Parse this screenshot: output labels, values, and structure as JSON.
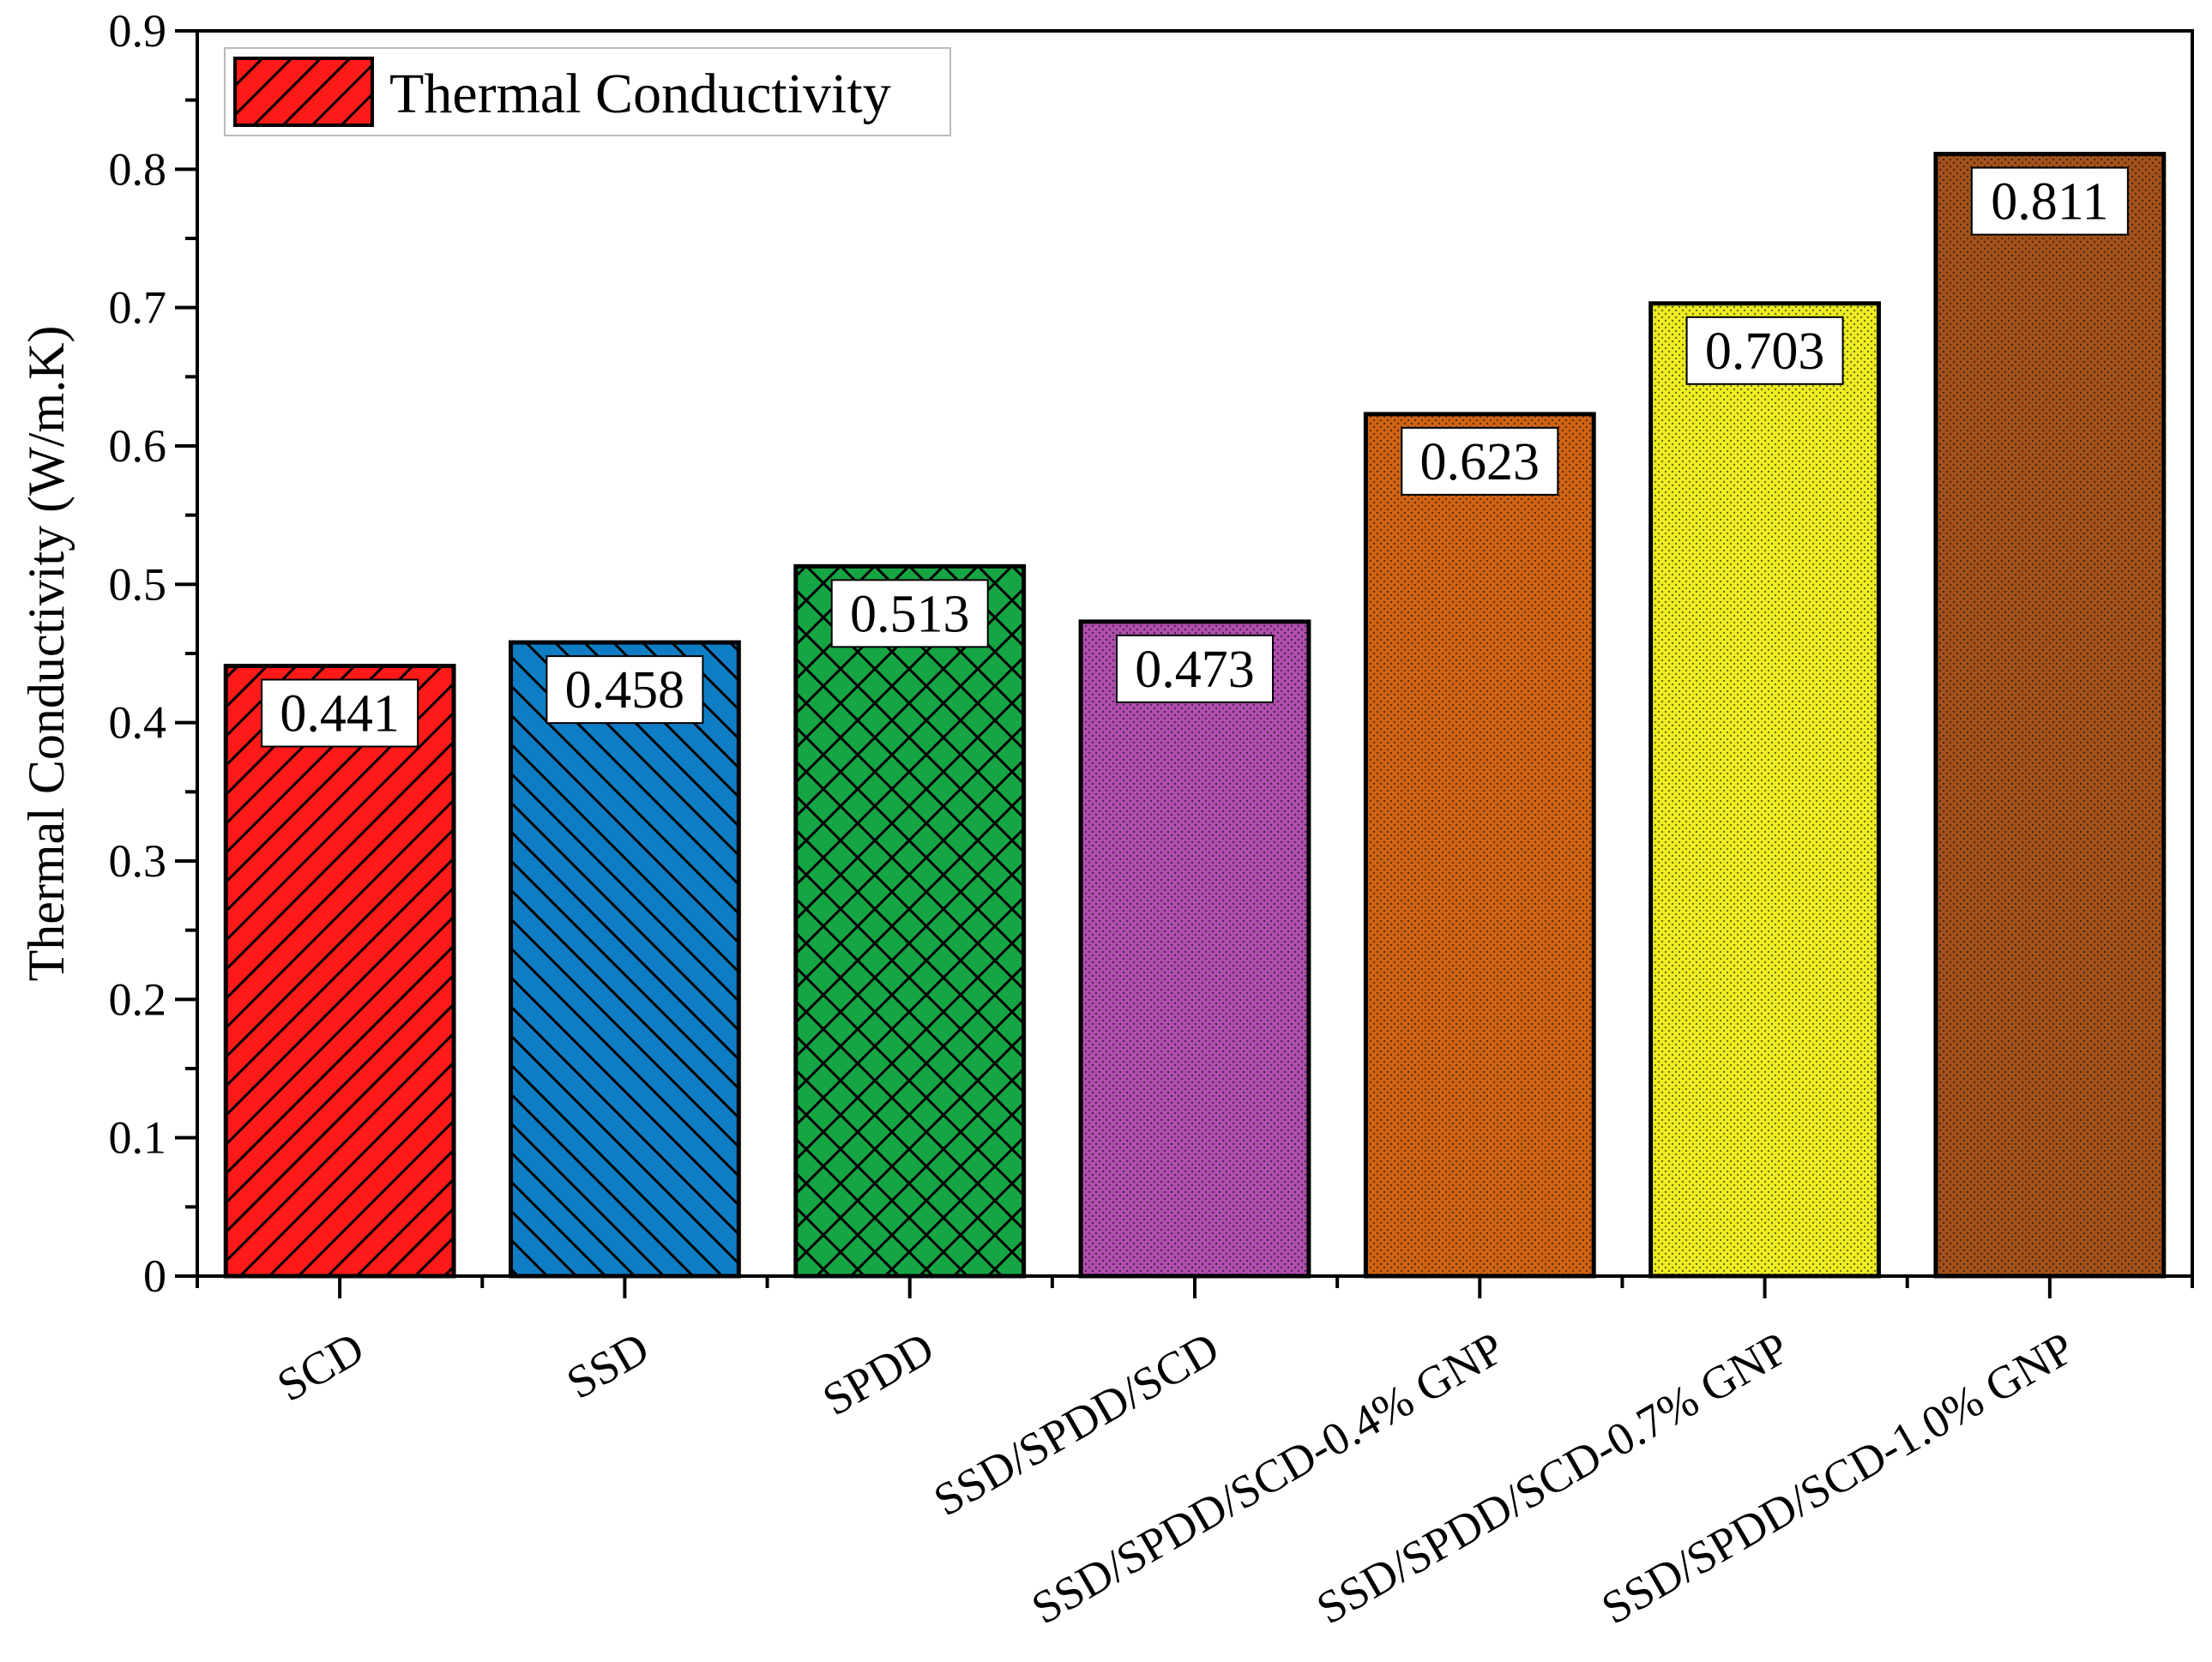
{
  "chart_data": {
    "type": "bar",
    "title": "",
    "xlabel": "",
    "ylabel": "Thermal Conductivity (W/m.K)",
    "ylim": [
      0,
      0.9
    ],
    "yticks": [
      "0",
      "0.1",
      "0.2",
      "0.3",
      "0.4",
      "0.5",
      "0.6",
      "0.7",
      "0.8",
      "0.9"
    ],
    "legend": {
      "label": "Thermal Conductivity",
      "position": "top-left"
    },
    "categories": [
      "SCD",
      "SSD",
      "SPDD",
      "SSD/SPDD/SCD",
      "SSD/SPDD/SCD-0.4% GNP",
      "SSD/SPDD/SCD-0.7% GNP",
      "SSD/SPDD/SCD-1.0% GNP"
    ],
    "values": [
      0.441,
      0.458,
      0.513,
      0.473,
      0.623,
      0.703,
      0.811
    ],
    "value_labels": [
      "0.441",
      "0.458",
      "0.513",
      "0.473",
      "0.623",
      "0.703",
      "0.811"
    ],
    "colors": [
      "#ff1a1a",
      "#0f7dc4",
      "#16a544",
      "#b04fae",
      "#d06414",
      "#eeee22",
      "#a4521c"
    ],
    "patterns": [
      "diag-up",
      "diag-down",
      "crosshatch",
      "dots",
      "dots",
      "dots",
      "dots"
    ]
  }
}
